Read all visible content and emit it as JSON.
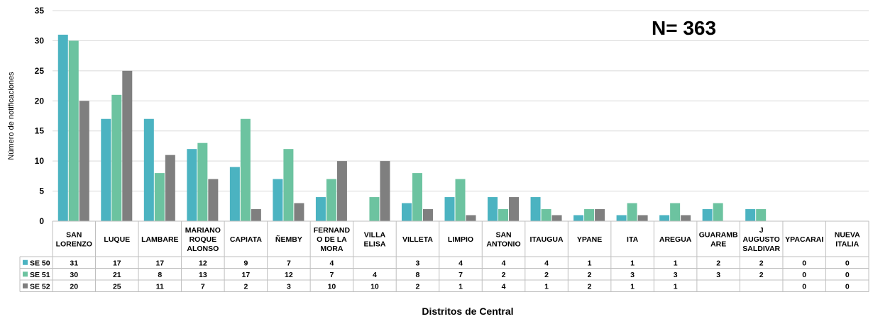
{
  "n_label": "N= 363",
  "colors": {
    "SE 50": "#4BB3C1",
    "SE 51": "#6CC3A0",
    "SE 52": "#7F7F7F",
    "grid": "#d9d9d9",
    "axis": "#bfbfbf"
  },
  "chart_data": {
    "type": "bar",
    "title": "",
    "xlabel": "Distritos de Central",
    "ylabel": "Número de notificaciones",
    "ylim": [
      0,
      35
    ],
    "yticks": [
      0,
      5,
      10,
      15,
      20,
      25,
      30,
      35
    ],
    "grid": true,
    "legend": "data-table",
    "categories": [
      "SAN LORENZO",
      "LUQUE",
      "LAMBARE",
      "MARIANO ROQUE ALONSO",
      "CAPIATA",
      "ÑEMBY",
      "FERNANDO DE LA MORA",
      "VILLA ELISA",
      "VILLETA",
      "LIMPIO",
      "SAN ANTONIO",
      "ITAUGUA",
      "YPANE",
      "ITA",
      "AREGUA",
      "GUARAMBARE",
      "J AUGUSTO SALDIVAR",
      "YPACARAI",
      "NUEVA ITALIA"
    ],
    "category_display": [
      [
        "SAN",
        "LORENZO"
      ],
      [
        "LUQUE"
      ],
      [
        "LAMBARE"
      ],
      [
        "MARIANO",
        "ROQUE",
        "ALONSO"
      ],
      [
        "CAPIATA"
      ],
      [
        "ÑEMBY"
      ],
      [
        "FERNAND",
        "O DE LA",
        "MORA"
      ],
      [
        "VILLA",
        "ELISA"
      ],
      [
        "VILLETA"
      ],
      [
        "LIMPIO"
      ],
      [
        "SAN",
        "ANTONIO"
      ],
      [
        "ITAUGUA"
      ],
      [
        "YPANE"
      ],
      [
        "ITA"
      ],
      [
        "AREGUA"
      ],
      [
        "GUARAMB",
        "ARE"
      ],
      [
        "J",
        "AUGUSTO",
        "SALDIVAR"
      ],
      [
        "YPACARAI"
      ],
      [
        "NUEVA",
        "ITALIA"
      ]
    ],
    "series": [
      {
        "name": "SE 50",
        "values": [
          31,
          17,
          17,
          12,
          9,
          7,
          4,
          null,
          3,
          4,
          4,
          4,
          1,
          1,
          1,
          2,
          2,
          0,
          0
        ]
      },
      {
        "name": "SE 51",
        "values": [
          30,
          21,
          8,
          13,
          17,
          12,
          7,
          4,
          8,
          7,
          2,
          2,
          2,
          3,
          3,
          3,
          2,
          0,
          0
        ]
      },
      {
        "name": "SE 52",
        "values": [
          20,
          25,
          11,
          7,
          2,
          3,
          10,
          10,
          2,
          1,
          4,
          1,
          2,
          1,
          1,
          null,
          null,
          0,
          0
        ]
      }
    ]
  }
}
